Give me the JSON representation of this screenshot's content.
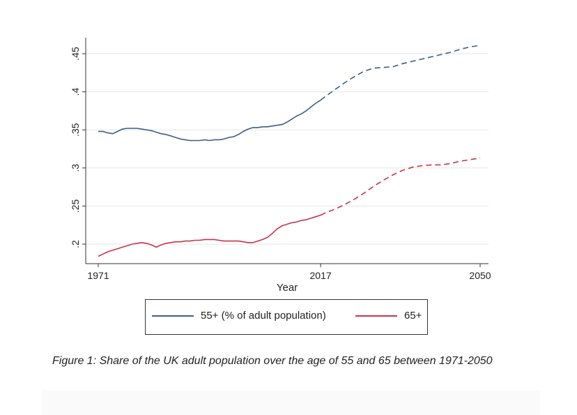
{
  "chart_data": {
    "type": "line",
    "xlabel": "Year",
    "ylabel": "",
    "xlim": [
      1971,
      2050
    ],
    "ylim": [
      0.18,
      0.47
    ],
    "x_ticks": [
      1971,
      2017,
      2050
    ],
    "x_tick_labels": [
      "1971",
      "2017",
      "2050"
    ],
    "y_ticks": [
      0.2,
      0.25,
      0.3,
      0.35,
      0.4,
      0.45
    ],
    "y_tick_labels": [
      ".2",
      ".25",
      ".3",
      ".35",
      ".4",
      ".45"
    ],
    "grid": true,
    "legend_position": "bottom",
    "projection_start": 2017,
    "series": [
      {
        "name": "55+ (% of adult population)",
        "color": "#3b5f86",
        "x": [
          1971,
          1972,
          1973,
          1974,
          1975,
          1976,
          1977,
          1978,
          1979,
          1980,
          1981,
          1982,
          1983,
          1984,
          1985,
          1986,
          1987,
          1988,
          1989,
          1990,
          1991,
          1992,
          1993,
          1994,
          1995,
          1996,
          1997,
          1998,
          1999,
          2000,
          2001,
          2002,
          2003,
          2004,
          2005,
          2006,
          2007,
          2008,
          2009,
          2010,
          2011,
          2012,
          2013,
          2014,
          2015,
          2016,
          2017,
          2018,
          2020,
          2022,
          2024,
          2026,
          2028,
          2030,
          2032,
          2034,
          2036,
          2038,
          2040,
          2042,
          2044,
          2046,
          2048,
          2050
        ],
        "values": [
          0.348,
          0.348,
          0.346,
          0.345,
          0.348,
          0.351,
          0.352,
          0.352,
          0.352,
          0.351,
          0.35,
          0.349,
          0.347,
          0.345,
          0.344,
          0.342,
          0.34,
          0.338,
          0.337,
          0.336,
          0.336,
          0.336,
          0.337,
          0.336,
          0.337,
          0.337,
          0.338,
          0.34,
          0.341,
          0.344,
          0.348,
          0.351,
          0.353,
          0.353,
          0.354,
          0.354,
          0.355,
          0.356,
          0.357,
          0.36,
          0.364,
          0.368,
          0.371,
          0.375,
          0.38,
          0.385,
          0.389,
          0.394,
          0.403,
          0.412,
          0.42,
          0.427,
          0.431,
          0.432,
          0.433,
          0.437,
          0.44,
          0.443,
          0.446,
          0.449,
          0.452,
          0.456,
          0.459,
          0.461
        ]
      },
      {
        "name": "65+",
        "color": "#c8334d",
        "x": [
          1971,
          1972,
          1973,
          1974,
          1975,
          1976,
          1977,
          1978,
          1979,
          1980,
          1981,
          1982,
          1983,
          1984,
          1985,
          1986,
          1987,
          1988,
          1989,
          1990,
          1991,
          1992,
          1993,
          1994,
          1995,
          1996,
          1997,
          1998,
          1999,
          2000,
          2001,
          2002,
          2003,
          2004,
          2005,
          2006,
          2007,
          2008,
          2009,
          2010,
          2011,
          2012,
          2013,
          2014,
          2015,
          2016,
          2017,
          2018,
          2020,
          2022,
          2024,
          2026,
          2028,
          2030,
          2032,
          2034,
          2036,
          2038,
          2040,
          2042,
          2044,
          2046,
          2048,
          2050
        ],
        "values": [
          0.184,
          0.187,
          0.19,
          0.192,
          0.194,
          0.196,
          0.198,
          0.2,
          0.201,
          0.202,
          0.201,
          0.199,
          0.196,
          0.199,
          0.201,
          0.202,
          0.203,
          0.203,
          0.204,
          0.204,
          0.205,
          0.205,
          0.206,
          0.206,
          0.206,
          0.205,
          0.204,
          0.204,
          0.204,
          0.204,
          0.203,
          0.202,
          0.202,
          0.204,
          0.206,
          0.209,
          0.214,
          0.22,
          0.224,
          0.226,
          0.228,
          0.229,
          0.231,
          0.232,
          0.234,
          0.236,
          0.238,
          0.241,
          0.246,
          0.252,
          0.259,
          0.267,
          0.276,
          0.284,
          0.291,
          0.297,
          0.301,
          0.303,
          0.304,
          0.304,
          0.306,
          0.309,
          0.311,
          0.313
        ]
      }
    ]
  },
  "legend": {
    "item1": "55+ (% of adult population)",
    "item2": "65+"
  },
  "caption": "Figure 1: Share of the UK adult population over the age of 55 and 65 between 1971-2050"
}
